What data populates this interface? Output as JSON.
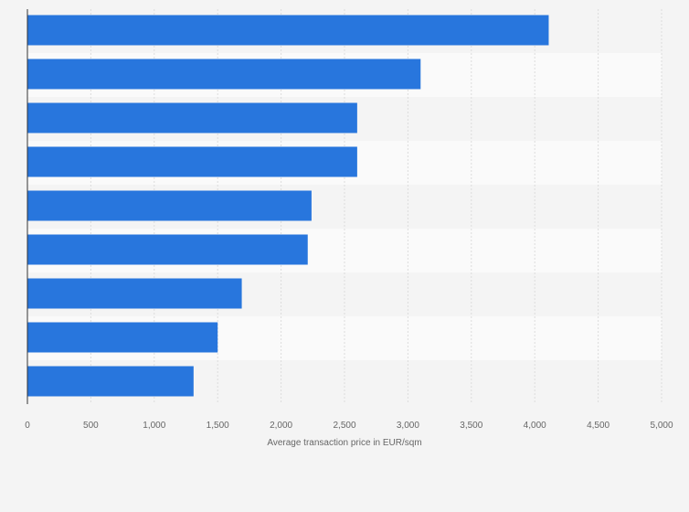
{
  "chart_data": {
    "type": "bar",
    "orientation": "horizontal",
    "categories": [
      "",
      "",
      "",
      "",
      "",
      "",
      "",
      "",
      ""
    ],
    "values": [
      4110,
      3100,
      2600,
      2600,
      2240,
      2210,
      1690,
      1500,
      1310
    ],
    "xlabel": "Average transaction price in EUR/sqm",
    "xlim": [
      0,
      5000
    ],
    "xticks": [
      0,
      500,
      1000,
      1500,
      2000,
      2500,
      3000,
      3500,
      4000,
      4500,
      5000
    ],
    "xtick_labels": [
      "0",
      "500",
      "1,000",
      "1,500",
      "2,000",
      "2,500",
      "3,000",
      "3,500",
      "4,000",
      "4,500",
      "5,000"
    ],
    "grid": true,
    "bar_color": "#2876dd",
    "band_colors": [
      "#f4f4f4",
      "#fafafa"
    ],
    "gridline_color": "#dcdcdc",
    "axis_color": "#333333"
  }
}
